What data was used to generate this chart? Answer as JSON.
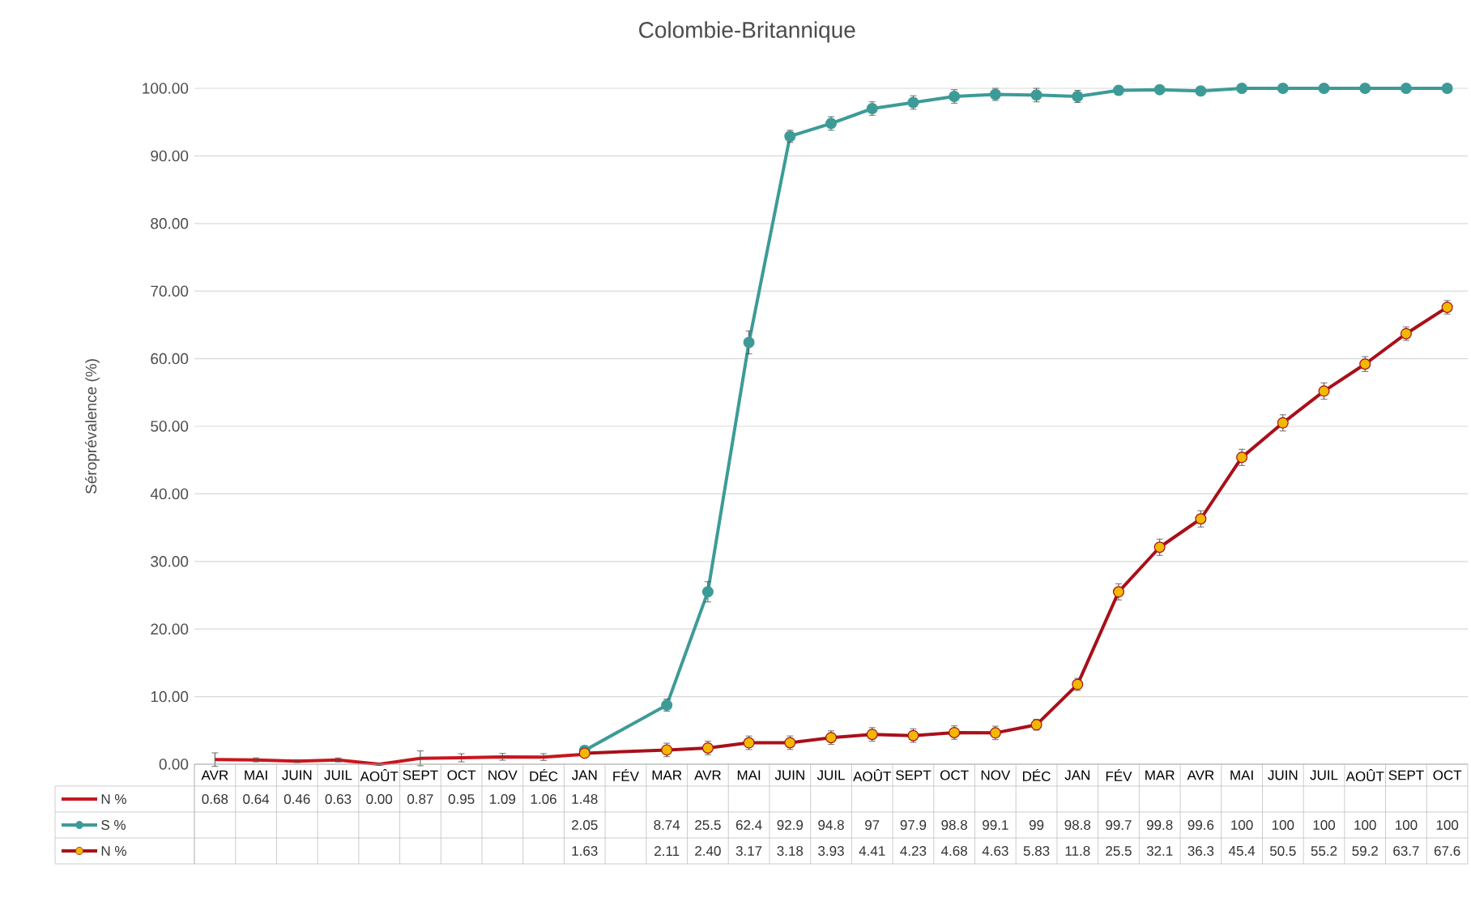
{
  "chart_data": {
    "type": "line",
    "title": "Colombie-Britannique",
    "ylabel": "Séroprévalence (%)",
    "categories": [
      "AVR",
      "MAI",
      "JUIN",
      "JUIL",
      "AOÛT",
      "SEPT",
      "OCT",
      "NOV",
      "DÉC",
      "JAN",
      "FÉV",
      "MAR",
      "AVR",
      "MAI",
      "JUIN",
      "JUIL",
      "AOÛT",
      "SEPT",
      "OCT",
      "NOV",
      "DÉC",
      "JAN",
      "FÉV",
      "MAR",
      "AVR",
      "MAI",
      "JUIN",
      "JUIL",
      "AOÛT",
      "SEPT",
      "OCT"
    ],
    "ylim": [
      0,
      100
    ],
    "yticks": [
      {
        "value": 0,
        "label": "0.00"
      },
      {
        "value": 10,
        "label": "10.00"
      },
      {
        "value": 20,
        "label": "20.00"
      },
      {
        "value": 30,
        "label": "30.00"
      },
      {
        "value": 40,
        "label": "40.00"
      },
      {
        "value": 50,
        "label": "50.00"
      },
      {
        "value": 60,
        "label": "60.00"
      },
      {
        "value": 70,
        "label": "70.00"
      },
      {
        "value": 80,
        "label": "80.00"
      },
      {
        "value": 90,
        "label": "90.00"
      },
      {
        "value": 100,
        "label": "100.00"
      }
    ],
    "grid": "y",
    "legend": "bottom left",
    "series": [
      {
        "name": "N %",
        "color": "#c8161d",
        "marker": "none",
        "values": [
          0.68,
          0.64,
          0.46,
          0.63,
          0.0,
          0.87,
          0.95,
          1.09,
          1.06,
          1.48,
          null,
          null,
          null,
          null,
          null,
          null,
          null,
          null,
          null,
          null,
          null,
          null,
          null,
          null,
          null,
          null,
          null,
          null,
          null,
          null,
          null
        ],
        "value_labels": [
          "0.68",
          "0.64",
          "0.46",
          "0.63",
          "0.00",
          "0.87",
          "0.95",
          "1.09",
          "1.06",
          "1.48",
          null,
          null,
          null,
          null,
          null,
          null,
          null,
          null,
          null,
          null,
          null,
          null,
          null,
          null,
          null,
          null,
          null,
          null,
          null,
          null,
          null
        ],
        "errors": [
          1.0,
          0.3,
          0.2,
          0.3,
          0.1,
          1.1,
          0.6,
          0.5,
          0.5,
          0.3,
          null,
          null,
          null,
          null,
          null,
          null,
          null,
          null,
          null,
          null,
          null,
          null,
          null,
          null,
          null,
          null,
          null,
          null,
          null,
          null,
          null
        ]
      },
      {
        "name": "S %",
        "color": "#3d9b97",
        "marker": "circle",
        "values": [
          null,
          null,
          null,
          null,
          null,
          null,
          null,
          null,
          null,
          2.05,
          null,
          8.74,
          25.5,
          62.4,
          92.9,
          94.8,
          97,
          97.9,
          98.8,
          99.1,
          99,
          98.8,
          99.7,
          99.8,
          99.6,
          100,
          100,
          100,
          100,
          100,
          100
        ],
        "value_labels": [
          null,
          null,
          null,
          null,
          null,
          null,
          null,
          null,
          null,
          "2.05",
          null,
          "8.74",
          "25.5",
          "62.4",
          "92.9",
          "94.8",
          "97",
          "97.9",
          "98.8",
          "99.1",
          "99",
          "98.8",
          "99.7",
          "99.8",
          "99.6",
          "100",
          "100",
          "100",
          "100",
          "100",
          "100"
        ],
        "errors": [
          null,
          null,
          null,
          null,
          null,
          null,
          null,
          null,
          null,
          0.5,
          null,
          0.9,
          1.5,
          1.7,
          0.9,
          1.0,
          1.0,
          1.0,
          1.0,
          0.9,
          1.0,
          0.9,
          0.3,
          0.3,
          0.3,
          0.1,
          0.1,
          0.1,
          0.1,
          0.1,
          0.1
        ]
      },
      {
        "name": "N %",
        "color": "#a8101a",
        "marker": "circle",
        "values": [
          null,
          null,
          null,
          null,
          null,
          null,
          null,
          null,
          null,
          1.63,
          null,
          2.11,
          2.4,
          3.17,
          3.18,
          3.93,
          4.41,
          4.23,
          4.68,
          4.63,
          5.83,
          11.8,
          25.5,
          32.1,
          36.3,
          45.4,
          50.5,
          55.2,
          59.2,
          63.7,
          67.6
        ],
        "value_labels": [
          null,
          null,
          null,
          null,
          null,
          null,
          null,
          null,
          null,
          "1.63",
          null,
          "2.11",
          "2.40",
          "3.17",
          "3.18",
          "3.93",
          "4.41",
          "4.23",
          "4.68",
          "4.63",
          "5.83",
          "11.8",
          "25.5",
          "32.1",
          "36.3",
          "45.4",
          "50.5",
          "55.2",
          "59.2",
          "63.7",
          "67.6"
        ],
        "errors": [
          null,
          null,
          null,
          null,
          null,
          null,
          null,
          null,
          null,
          0.4,
          null,
          1.0,
          1.0,
          1.0,
          1.0,
          1.0,
          1.0,
          1.0,
          1.0,
          1.0,
          0.8,
          0.9,
          1.2,
          1.2,
          1.2,
          1.2,
          1.2,
          1.2,
          1.1,
          1.0,
          1.0
        ]
      }
    ]
  }
}
